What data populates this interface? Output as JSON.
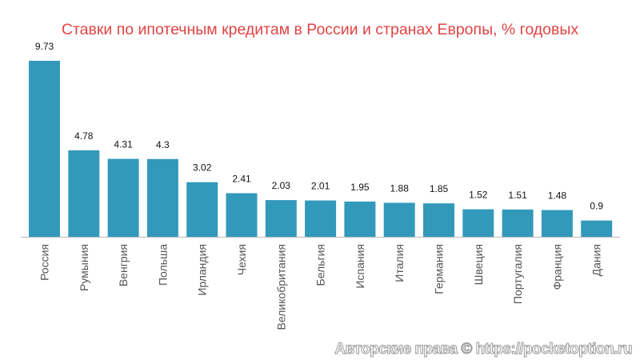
{
  "chart_data": {
    "type": "bar",
    "title": "Ставки по ипотечным кредитам в России и странах Европы, % годовых",
    "categories": [
      "Россия",
      "Румыния",
      "Венгрия",
      "Польша",
      "Ирландия",
      "Чехия",
      "Великобритания",
      "Бельгия",
      "Испания",
      "Италия",
      "Германия",
      "Швеция",
      "Португалия",
      "Франция",
      "Дания"
    ],
    "values": [
      9.73,
      4.78,
      4.31,
      4.3,
      3.02,
      2.41,
      2.03,
      2.01,
      1.95,
      1.88,
      1.85,
      1.52,
      1.51,
      1.48,
      0.9
    ],
    "xlabel": "",
    "ylabel": "",
    "ylim": [
      0,
      9.73
    ],
    "grid": false,
    "bar_color": "#3399bb",
    "title_color": "#e04444"
  },
  "watermark": "Авторские права © https://pocketoption.ru"
}
